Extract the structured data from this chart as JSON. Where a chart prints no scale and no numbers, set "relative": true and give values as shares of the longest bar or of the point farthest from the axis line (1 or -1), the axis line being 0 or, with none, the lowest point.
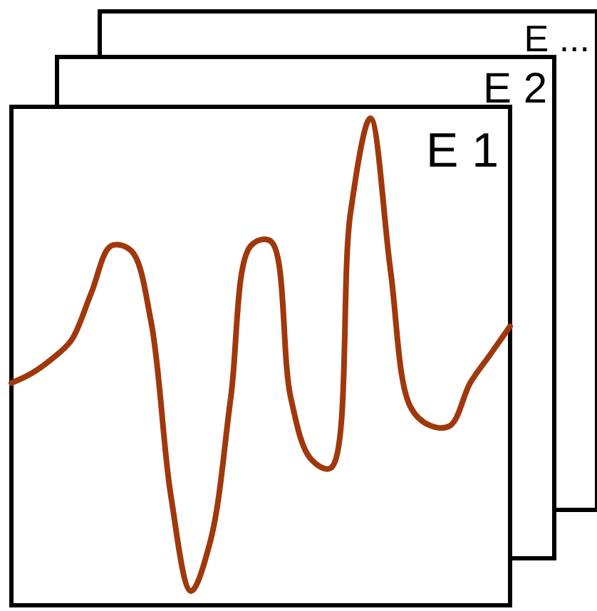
{
  "chart_data": {
    "type": "line",
    "relative": true,
    "categories": [
      null,
      null,
      null,
      null,
      null,
      null,
      null,
      null,
      null,
      null,
      null,
      null,
      null,
      null,
      null,
      null,
      null,
      null,
      null,
      null,
      null,
      null,
      null,
      null,
      null,
      null
    ],
    "series": [
      {
        "color": "#a0380c",
        "values": [
          0.44,
          0.46,
          0.49,
          0.53,
          0.63,
          0.73,
          0.72,
          0.57,
          0.2,
          0,
          0.11,
          0.41,
          0.73,
          0.74,
          0.41,
          0.28,
          0.26,
          0.8,
          1,
          0.68,
          0.39,
          0.35,
          0.35,
          0.44,
          0.5,
          0.56
        ]
      }
    ],
    "annotations": [
      "E 1",
      "E 2",
      "E ..."
    ]
  }
}
